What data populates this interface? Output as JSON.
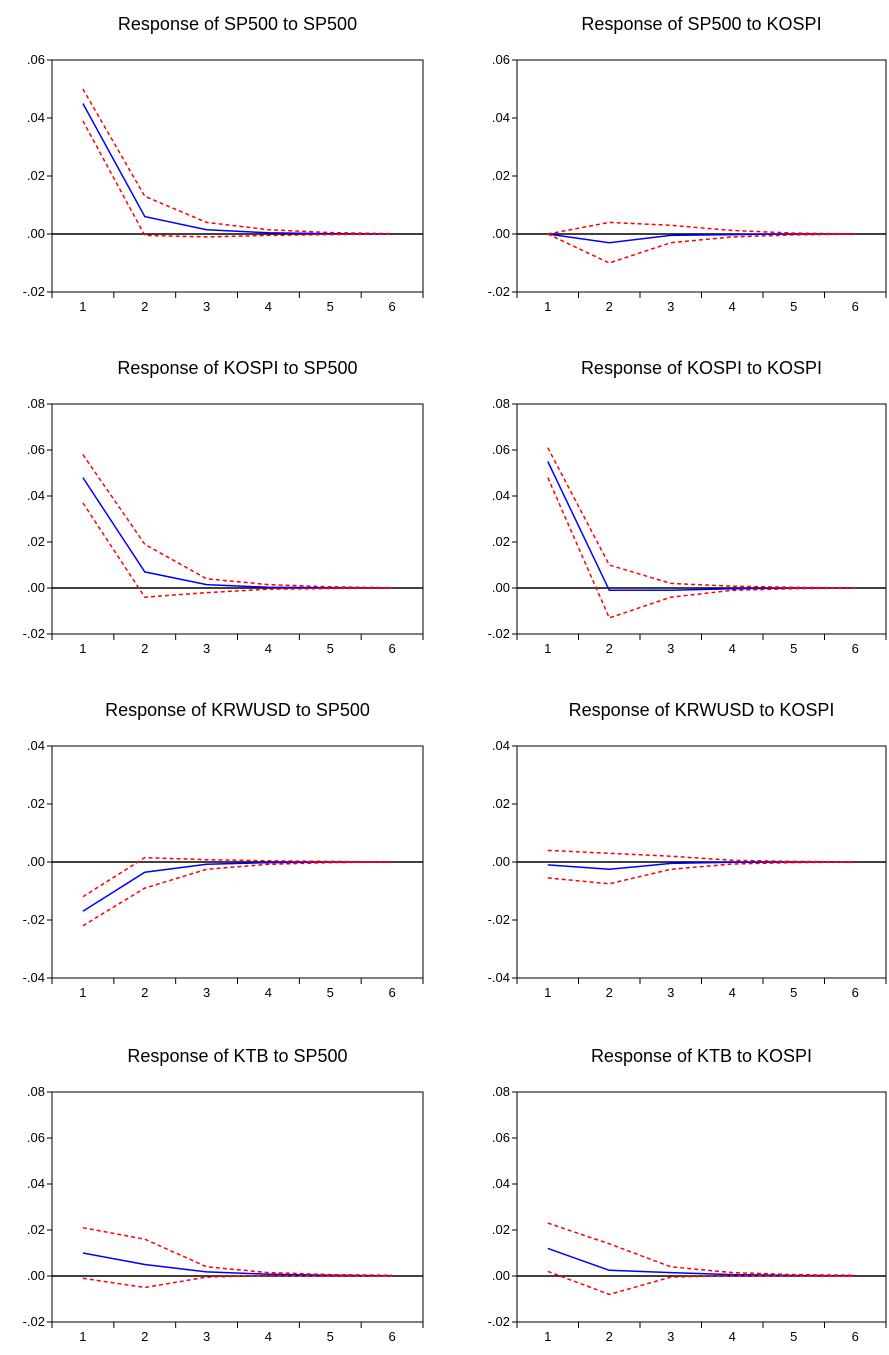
{
  "chart_data": [
    {
      "type": "line",
      "title": "Response of SP500 to SP500",
      "x": [
        1,
        2,
        3,
        4,
        5,
        6
      ],
      "ylim": [
        -0.02,
        0.06
      ],
      "yticks": [
        ".06",
        ".04",
        ".02",
        ".00",
        "-.02"
      ],
      "ytick_values": [
        0.06,
        0.04,
        0.02,
        0.0,
        -0.02
      ],
      "series": [
        {
          "role": "response",
          "values": [
            0.045,
            0.006,
            0.0015,
            0.0004,
            0.0001,
            0.0
          ]
        },
        {
          "role": "upper-band",
          "values": [
            0.05,
            0.013,
            0.004,
            0.0015,
            0.0005,
            0.0001
          ]
        },
        {
          "role": "lower-band",
          "values": [
            0.039,
            -0.0005,
            -0.001,
            -0.0005,
            -0.0002,
            0.0
          ]
        }
      ],
      "colors": {
        "response": "#0000ff",
        "band": "#ff0000",
        "zero": "#000000"
      }
    },
    {
      "type": "line",
      "title": "Response of SP500 to KOSPI",
      "x": [
        1,
        2,
        3,
        4,
        5,
        6
      ],
      "ylim": [
        -0.02,
        0.06
      ],
      "yticks": [
        ".06",
        ".04",
        ".02",
        ".00",
        "-.02"
      ],
      "ytick_values": [
        0.06,
        0.04,
        0.02,
        0.0,
        -0.02
      ],
      "series": [
        {
          "role": "response",
          "values": [
            0.0,
            -0.003,
            -0.0005,
            -0.0002,
            0.0,
            0.0
          ]
        },
        {
          "role": "upper-band",
          "values": [
            0.0,
            0.004,
            0.003,
            0.0012,
            0.0003,
            0.0
          ]
        },
        {
          "role": "lower-band",
          "values": [
            0.0,
            -0.01,
            -0.003,
            -0.001,
            -0.0003,
            0.0
          ]
        }
      ],
      "colors": {
        "response": "#0000ff",
        "band": "#ff0000",
        "zero": "#000000"
      }
    },
    {
      "type": "line",
      "title": "Response of KOSPI to SP500",
      "x": [
        1,
        2,
        3,
        4,
        5,
        6
      ],
      "ylim": [
        -0.02,
        0.08
      ],
      "yticks": [
        ".08",
        ".06",
        ".04",
        ".02",
        ".00",
        "-.02"
      ],
      "ytick_values": [
        0.08,
        0.06,
        0.04,
        0.02,
        0.0,
        -0.02
      ],
      "series": [
        {
          "role": "response",
          "values": [
            0.048,
            0.007,
            0.0015,
            0.0003,
            0.0001,
            0.0
          ]
        },
        {
          "role": "upper-band",
          "values": [
            0.058,
            0.019,
            0.004,
            0.0015,
            0.0005,
            0.0001
          ]
        },
        {
          "role": "lower-band",
          "values": [
            0.037,
            -0.004,
            -0.002,
            -0.0005,
            -0.0002,
            0.0
          ]
        }
      ],
      "colors": {
        "response": "#0000ff",
        "band": "#ff0000",
        "zero": "#000000"
      }
    },
    {
      "type": "line",
      "title": "Response of KOSPI to KOSPI",
      "x": [
        1,
        2,
        3,
        4,
        5,
        6
      ],
      "ylim": [
        -0.02,
        0.08
      ],
      "yticks": [
        ".08",
        ".06",
        ".04",
        ".02",
        ".00",
        "-.02"
      ],
      "ytick_values": [
        0.08,
        0.06,
        0.04,
        0.02,
        0.0,
        -0.02
      ],
      "series": [
        {
          "role": "response",
          "values": [
            0.055,
            -0.001,
            -0.001,
            -0.0003,
            0.0,
            0.0
          ]
        },
        {
          "role": "upper-band",
          "values": [
            0.061,
            0.01,
            0.002,
            0.0008,
            0.0003,
            0.0
          ]
        },
        {
          "role": "lower-band",
          "values": [
            0.048,
            -0.013,
            -0.004,
            -0.001,
            -0.0003,
            0.0
          ]
        }
      ],
      "colors": {
        "response": "#0000ff",
        "band": "#ff0000",
        "zero": "#000000"
      }
    },
    {
      "type": "line",
      "title": "Response of KRWUSD to SP500",
      "x": [
        1,
        2,
        3,
        4,
        5,
        6
      ],
      "ylim": [
        -0.04,
        0.04
      ],
      "yticks": [
        ".04",
        ".02",
        ".00",
        "-.02",
        "-.04"
      ],
      "ytick_values": [
        0.04,
        0.02,
        0.0,
        -0.02,
        -0.04
      ],
      "series": [
        {
          "role": "response",
          "values": [
            -0.017,
            -0.0035,
            -0.0008,
            -0.0002,
            0.0,
            0.0
          ]
        },
        {
          "role": "upper-band",
          "values": [
            -0.012,
            0.0015,
            0.0008,
            0.0004,
            0.0002,
            0.0
          ]
        },
        {
          "role": "lower-band",
          "values": [
            -0.022,
            -0.009,
            -0.0025,
            -0.0008,
            -0.0002,
            0.0
          ]
        }
      ],
      "colors": {
        "response": "#0000ff",
        "band": "#ff0000",
        "zero": "#000000"
      }
    },
    {
      "type": "line",
      "title": "Response of KRWUSD to KOSPI",
      "x": [
        1,
        2,
        3,
        4,
        5,
        6
      ],
      "ylim": [
        -0.04,
        0.04
      ],
      "yticks": [
        ".04",
        ".02",
        ".00",
        "-.02",
        "-.04"
      ],
      "ytick_values": [
        0.04,
        0.02,
        0.0,
        -0.02,
        -0.04
      ],
      "series": [
        {
          "role": "response",
          "values": [
            -0.001,
            -0.0025,
            -0.0005,
            -0.0001,
            0.0,
            0.0
          ]
        },
        {
          "role": "upper-band",
          "values": [
            0.004,
            0.003,
            0.002,
            0.0006,
            0.0002,
            0.0
          ]
        },
        {
          "role": "lower-band",
          "values": [
            -0.0055,
            -0.0075,
            -0.0025,
            -0.0007,
            -0.0002,
            0.0
          ]
        }
      ],
      "colors": {
        "response": "#0000ff",
        "band": "#ff0000",
        "zero": "#000000"
      }
    },
    {
      "type": "line",
      "title": "Response of KTB to SP500",
      "x": [
        1,
        2,
        3,
        4,
        5,
        6
      ],
      "ylim": [
        -0.02,
        0.08
      ],
      "yticks": [
        ".08",
        ".06",
        ".04",
        ".02",
        ".00",
        "-.02"
      ],
      "ytick_values": [
        0.08,
        0.06,
        0.04,
        0.02,
        0.0,
        -0.02
      ],
      "series": [
        {
          "role": "response",
          "values": [
            0.01,
            0.005,
            0.0018,
            0.0008,
            0.0003,
            0.0001
          ]
        },
        {
          "role": "upper-band",
          "values": [
            0.021,
            0.016,
            0.004,
            0.0015,
            0.0006,
            0.0003
          ]
        },
        {
          "role": "lower-band",
          "values": [
            -0.001,
            -0.005,
            -0.0005,
            0.0002,
            0.0,
            0.0
          ]
        }
      ],
      "colors": {
        "response": "#0000ff",
        "band": "#ff0000",
        "zero": "#000000"
      }
    },
    {
      "type": "line",
      "title": "Response of KTB to KOSPI",
      "x": [
        1,
        2,
        3,
        4,
        5,
        6
      ],
      "ylim": [
        -0.02,
        0.08
      ],
      "yticks": [
        ".08",
        ".06",
        ".04",
        ".02",
        ".00",
        "-.02"
      ],
      "ytick_values": [
        0.08,
        0.06,
        0.04,
        0.02,
        0.0,
        -0.02
      ],
      "series": [
        {
          "role": "response",
          "values": [
            0.012,
            0.0025,
            0.0015,
            0.0006,
            0.0002,
            0.0001
          ]
        },
        {
          "role": "upper-band",
          "values": [
            0.023,
            0.014,
            0.004,
            0.0015,
            0.0006,
            0.0003
          ]
        },
        {
          "role": "lower-band",
          "values": [
            0.002,
            -0.008,
            -0.0005,
            0.0002,
            0.0,
            0.0
          ]
        }
      ],
      "colors": {
        "response": "#0000ff",
        "band": "#ff0000",
        "zero": "#000000"
      }
    }
  ]
}
